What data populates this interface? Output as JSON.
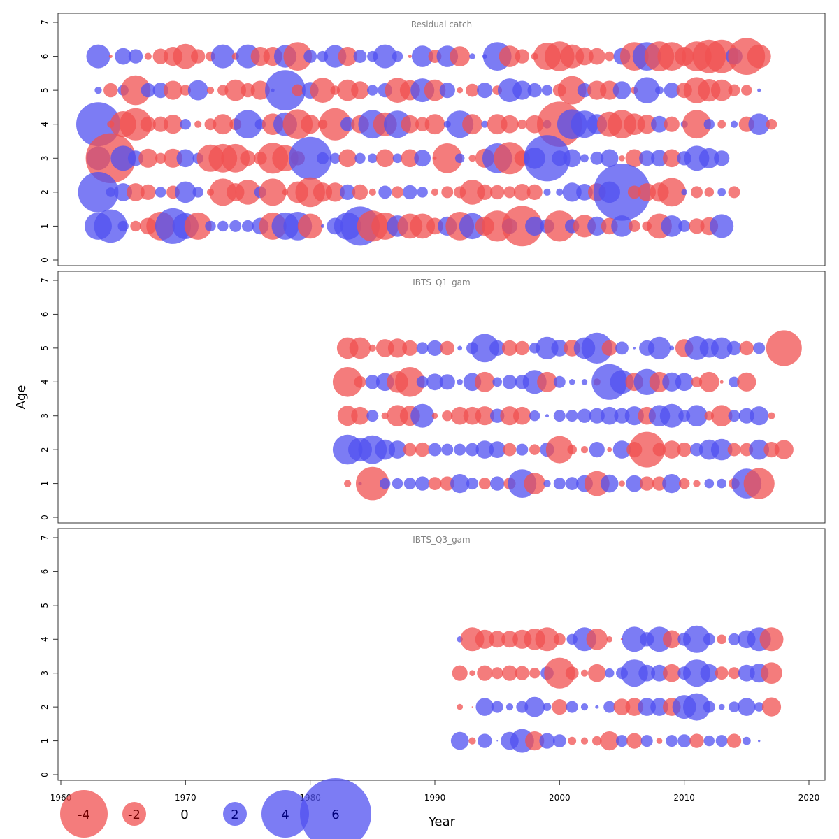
{
  "chart_data": {
    "type": "scatter",
    "subtype": "bubble",
    "xlabel": "Year",
    "ylabel": "Age",
    "xlim": [
      1960,
      2020
    ],
    "x_ticks": [
      1960,
      1970,
      1980,
      1990,
      2000,
      2010,
      2020
    ],
    "ylim": [
      0,
      7
    ],
    "y_ticks": [
      0,
      1,
      2,
      3,
      4,
      5,
      6,
      7
    ],
    "colors": {
      "positive": "#5050f0",
      "negative": "#f05050",
      "fill_opacity": 0.75
    },
    "legend": {
      "placement": "bottom-left",
      "values": [
        -4,
        -2,
        0,
        2,
        4,
        6
      ],
      "labels": [
        "-4",
        "-2",
        "0",
        "2",
        "4",
        "6"
      ]
    },
    "panels": [
      {
        "title": "Residual catch",
        "years": [
          1963,
          1964,
          1965,
          1966,
          1967,
          1968,
          1969,
          1970,
          1971,
          1972,
          1973,
          1974,
          1975,
          1976,
          1977,
          1978,
          1979,
          1980,
          1981,
          1982,
          1983,
          1984,
          1985,
          1986,
          1987,
          1988,
          1989,
          1990,
          1991,
          1992,
          1993,
          1994,
          1995,
          1996,
          1997,
          1998,
          1999,
          2000,
          2001,
          2002,
          2003,
          2004,
          2005,
          2006,
          2007,
          2008,
          2009,
          2010,
          2011,
          2012,
          2013,
          2014,
          2015,
          2016,
          2017
        ],
        "ages": [
          1,
          2,
          3,
          4,
          5,
          6
        ],
        "residuals": {
          "6": [
            2.0,
            -0.3,
            1.4,
            1.2,
            -0.6,
            -1.3,
            -1.6,
            -2.1,
            -1.2,
            -0.8,
            2.0,
            -0.6,
            2.0,
            -1.6,
            -1.6,
            1.9,
            -2.4,
            1.1,
            0.9,
            1.9,
            -1.6,
            1.1,
            0.9,
            2.0,
            0.9,
            -0.3,
            1.8,
            -1.1,
            1.8,
            -1.7,
            0.5,
            0.4,
            2.4,
            -1.8,
            -1.2,
            -0.6,
            -2.3,
            -2.5,
            -2.0,
            -1.5,
            -1.4,
            -0.8,
            1.4,
            -2.4,
            2.4,
            -2.5,
            -2.4,
            -1.6,
            -2.5,
            -2.8,
            -2.8,
            1.4,
            -3.1,
            -2.0
          ],
          "5": [
            0.6,
            -1.2,
            0.9,
            -2.5,
            1.2,
            1.3,
            -1.6,
            -0.9,
            1.7,
            -0.6,
            -0.9,
            -1.8,
            -1.2,
            -1.6,
            0.3,
            3.4,
            -1.0,
            1.4,
            -2.1,
            -0.8,
            -1.8,
            -1.5,
            0.9,
            1.2,
            -2.1,
            -1.7,
            2.0,
            -1.8,
            1.3,
            -0.5,
            -1.1,
            1.3,
            -0.8,
            2.0,
            1.6,
            1.2,
            0.9,
            -1.1,
            -2.4,
            1.2,
            -1.6,
            -1.6,
            1.5,
            -0.6,
            2.2,
            0.7,
            1.3,
            -1.3,
            -2.2,
            -1.9,
            -1.8,
            -1.0,
            -0.9,
            0.3
          ],
          "4": [
            3.7,
            -0.6,
            -2.2,
            -2.7,
            -1.3,
            -1.3,
            -1.6,
            0.9,
            -0.6,
            -1.0,
            -1.7,
            -1.0,
            2.4,
            0.9,
            -1.8,
            2.0,
            -2.5,
            -1.6,
            -0.8,
            -2.7,
            1.2,
            -1.5,
            2.4,
            -2.0,
            2.3,
            -1.5,
            -1.2,
            -1.7,
            0.6,
            2.3,
            -1.7,
            0.6,
            -1.7,
            -1.5,
            -0.8,
            -1.5,
            0.7,
            -3.8,
            2.5,
            2.3,
            1.7,
            -2.1,
            -2.4,
            -1.8,
            -1.6,
            1.4,
            -1.3,
            0.6,
            -2.4,
            0.9,
            -0.7,
            0.6,
            -1.3,
            1.8,
            -0.9
          ],
          "3": [
            2.0,
            -4.2,
            2.1,
            1.3,
            -1.6,
            -0.9,
            -1.6,
            1.5,
            0.9,
            -2.3,
            -2.4,
            -2.4,
            -1.3,
            -1.1,
            -2.6,
            -2.2,
            -1.2,
            3.6,
            1.0,
            0.9,
            -1.5,
            0.9,
            0.8,
            -1.5,
            0.8,
            -1.5,
            1.4,
            -0.3,
            -2.5,
            0.8,
            -0.6,
            -1.6,
            2.5,
            -2.7,
            -1.3,
            1.8,
            3.9,
            1.3,
            1.5,
            0.7,
            1.1,
            1.5,
            -0.5,
            -1.5,
            1.3,
            1.4,
            -1.5,
            1.2,
            2.1,
            1.7,
            1.3
          ],
          "2": [
            3.4,
            0.8,
            1.5,
            -1.5,
            -1.3,
            0.9,
            -1.1,
            1.8,
            0.9,
            -0.6,
            -2.3,
            -1.5,
            -2.1,
            1.0,
            -2.3,
            -0.5,
            -1.8,
            -2.5,
            -1.6,
            -1.6,
            1.3,
            -1.3,
            -0.6,
            1.1,
            -1.0,
            1.2,
            0.9,
            -0.6,
            -1.0,
            -1.0,
            -2.1,
            -1.3,
            -1.2,
            -1.0,
            -1.4,
            -1.3,
            0.6,
            0.6,
            1.6,
            1.4,
            -1.5,
            1.8,
            4.8,
            -1.1,
            -1.5,
            -1.6,
            -2.4,
            0.5,
            -1.0,
            -0.8,
            0.7,
            -1.0
          ],
          "1": [
            2.3,
            2.8,
            0.9,
            -0.9,
            -1.4,
            -2.4,
            3.0,
            2.2,
            -2.3,
            0.9,
            0.9,
            1.0,
            1.0,
            1.4,
            -2.3,
            2.3,
            2.4,
            -2.1,
            0.3,
            1.4,
            2.3,
            3.3,
            -2.6,
            -2.3,
            1.8,
            -2.1,
            -2.1,
            -1.4,
            1.6,
            -2.4,
            2.2,
            -1.6,
            -2.6,
            1.3,
            -3.4,
            1.6,
            1.2,
            -2.6,
            1.2,
            -1.9,
            1.6,
            -1.4,
            1.8,
            -1.0,
            -0.8,
            -2.1,
            1.8,
            1.0,
            -1.3,
            -1.5,
            2.0
          ]
        }
      },
      {
        "title": "IBTS_Q1_gam",
        "years": [
          1983,
          1984,
          1985,
          1986,
          1987,
          1988,
          1989,
          1990,
          1991,
          1992,
          1993,
          1994,
          1995,
          1996,
          1997,
          1998,
          1999,
          2000,
          2001,
          2002,
          2003,
          2004,
          2005,
          2006,
          2007,
          2008,
          2009,
          2010,
          2011,
          2012,
          2013,
          2014,
          2015,
          2016,
          2017,
          2018
        ],
        "ages": [
          1,
          2,
          3,
          4,
          5
        ],
        "residuals": {
          "5": [
            -1.8,
            -1.8,
            -0.6,
            -1.5,
            -1.6,
            -1.3,
            1.0,
            1.3,
            -1.2,
            0.4,
            1.0,
            2.4,
            1.3,
            -1.3,
            -1.2,
            0.9,
            1.9,
            1.4,
            -1.4,
            1.8,
            2.6,
            -1.3,
            1.1,
            0.2,
            1.3,
            1.9,
            0.4,
            -1.5,
            2.0,
            1.6,
            1.8,
            1.2,
            -1.2,
            1.0,
            0.0,
            -3.0
          ],
          "4": [
            -2.5,
            -1.0,
            1.2,
            1.5,
            -1.8,
            -2.5,
            1.0,
            1.4,
            1.3,
            0.5,
            1.5,
            -1.7,
            0.8,
            1.2,
            1.2,
            2.0,
            -1.7,
            1.0,
            0.5,
            0.5,
            -0.6,
            3.0,
            2.0,
            -1.5,
            2.2,
            -1.7,
            1.6,
            1.5,
            -0.9,
            -1.7,
            -0.3,
            0.9,
            -1.6
          ],
          "3": [
            -1.7,
            -1.5,
            1.0,
            -0.6,
            -1.8,
            -1.7,
            2.0,
            -0.5,
            -0.9,
            -1.5,
            -1.5,
            -1.6,
            1.2,
            -1.6,
            -1.5,
            0.9,
            0.3,
            1.0,
            1.0,
            1.2,
            1.3,
            1.5,
            1.3,
            1.6,
            -1.5,
            1.8,
            2.0,
            1.0,
            1.8,
            -0.8,
            -1.8,
            1.0,
            1.3,
            1.6,
            -0.6
          ],
          "2": [
            2.5,
            2.0,
            2.4,
            1.7,
            1.5,
            -1.1,
            -1.2,
            1.1,
            1.0,
            1.0,
            1.1,
            1.5,
            1.4,
            -1.1,
            1.0,
            -0.9,
            1.2,
            -2.3,
            -0.8,
            -0.6,
            1.3,
            -0.4,
            1.5,
            -1.3,
            -3.0,
            -1.1,
            -1.5,
            -1.2,
            1.1,
            1.7,
            1.8,
            -1.1,
            -1.1,
            1.7,
            -1.3,
            -1.6
          ],
          "1": [
            -0.6,
            0.3,
            -2.8,
            0.9,
            0.9,
            1.0,
            1.2,
            -1.1,
            -1.2,
            1.6,
            1.0,
            -1.0,
            1.2,
            -1.0,
            2.4,
            -1.8,
            0.6,
            1.0,
            1.1,
            1.4,
            -2.1,
            1.5,
            -0.5,
            1.4,
            -1.2,
            -1.2,
            1.6,
            -0.9,
            -0.6,
            0.8,
            0.8,
            -0.9,
            2.5,
            -2.6
          ]
        }
      },
      {
        "title": "IBTS_Q3_gam",
        "years": [
          1992,
          1993,
          1994,
          1995,
          1996,
          1997,
          1998,
          1999,
          2000,
          2001,
          2002,
          2003,
          2004,
          2005,
          2006,
          2007,
          2008,
          2009,
          2010,
          2011,
          2012,
          2013,
          2014,
          2015,
          2016,
          2017
        ],
        "ages": [
          1,
          2,
          3,
          4
        ],
        "residuals": {
          "4": [
            0.5,
            -2.0,
            -1.6,
            -1.4,
            -1.4,
            -1.6,
            -1.8,
            -2.0,
            -1.0,
            0.9,
            2.0,
            -1.8,
            -0.5,
            -0.2,
            2.1,
            1.2,
            2.1,
            -1.5,
            1.1,
            2.3,
            1.0,
            -0.8,
            1.0,
            1.5,
            2.0,
            -2.0
          ],
          "3": [
            -1.3,
            -0.5,
            -1.3,
            -1.0,
            -1.3,
            -1.2,
            -0.9,
            1.1,
            -2.6,
            -1.1,
            -0.6,
            -1.5,
            0.8,
            1.0,
            2.3,
            1.4,
            1.4,
            -1.5,
            1.1,
            2.3,
            1.5,
            -1.1,
            -1.0,
            1.4,
            1.6,
            -1.8
          ],
          "2": [
            -0.5,
            -0.1,
            1.5,
            1.0,
            0.6,
            1.0,
            1.7,
            0.7,
            -1.3,
            1.0,
            0.6,
            0.3,
            1.0,
            -1.4,
            -1.5,
            1.5,
            1.5,
            -1.5,
            2.0,
            2.3,
            1.0,
            0.5,
            0.9,
            1.5,
            0.8,
            -1.6
          ],
          "1": [
            1.5,
            -0.6,
            1.2,
            0.1,
            1.5,
            2.0,
            -1.6,
            1.3,
            1.1,
            -0.7,
            -0.6,
            -0.8,
            -1.6,
            1.0,
            -1.3,
            1.0,
            -0.5,
            1.0,
            1.1,
            -1.2,
            0.9,
            1.0,
            -1.2,
            0.7,
            0.2
          ]
        }
      }
    ]
  }
}
